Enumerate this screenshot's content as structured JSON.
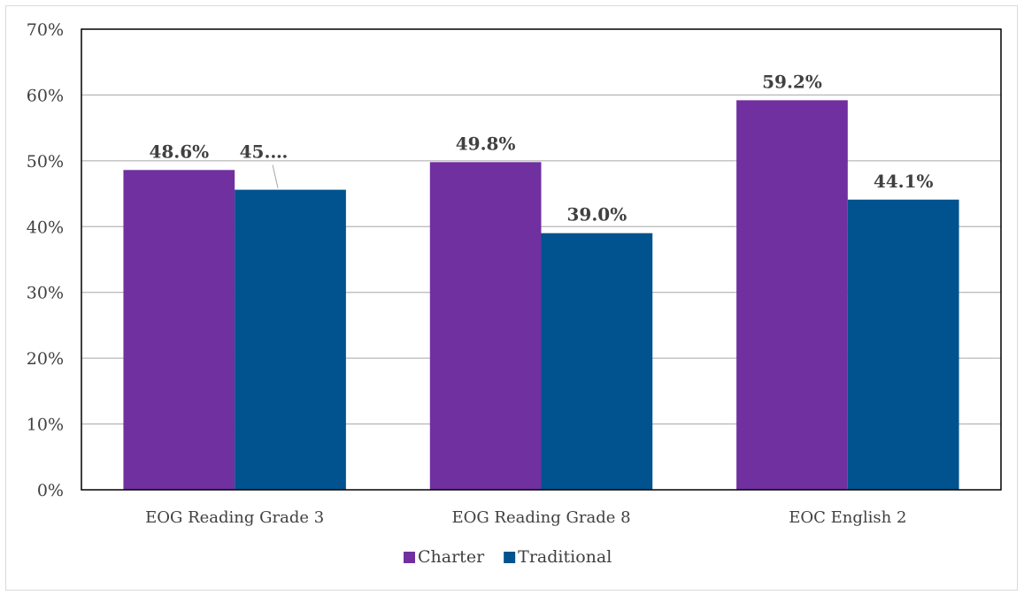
{
  "chart_data": {
    "type": "bar",
    "title": "",
    "xlabel": "",
    "ylabel": "",
    "ylim": [
      0,
      70
    ],
    "y_ticks": [
      "0%",
      "10%",
      "20%",
      "30%",
      "40%",
      "50%",
      "60%",
      "70%"
    ],
    "y_tick_values": [
      0,
      10,
      20,
      30,
      40,
      50,
      60,
      70
    ],
    "grid": true,
    "legend_position": "bottom",
    "categories": [
      "EOG Reading Grade 3",
      "EOG Reading Grade 8",
      "EOC English 2"
    ],
    "series": [
      {
        "name": "Charter",
        "color": "#7030a0",
        "values": [
          48.6,
          49.8,
          59.2
        ],
        "labels": [
          "48.6%",
          "49.8%",
          "59.2%"
        ]
      },
      {
        "name": "Traditional",
        "color": "#00538f",
        "values": [
          45.6,
          39.0,
          44.1
        ],
        "labels": [
          "45.…",
          "39.0%",
          "44.1%"
        ]
      }
    ]
  }
}
